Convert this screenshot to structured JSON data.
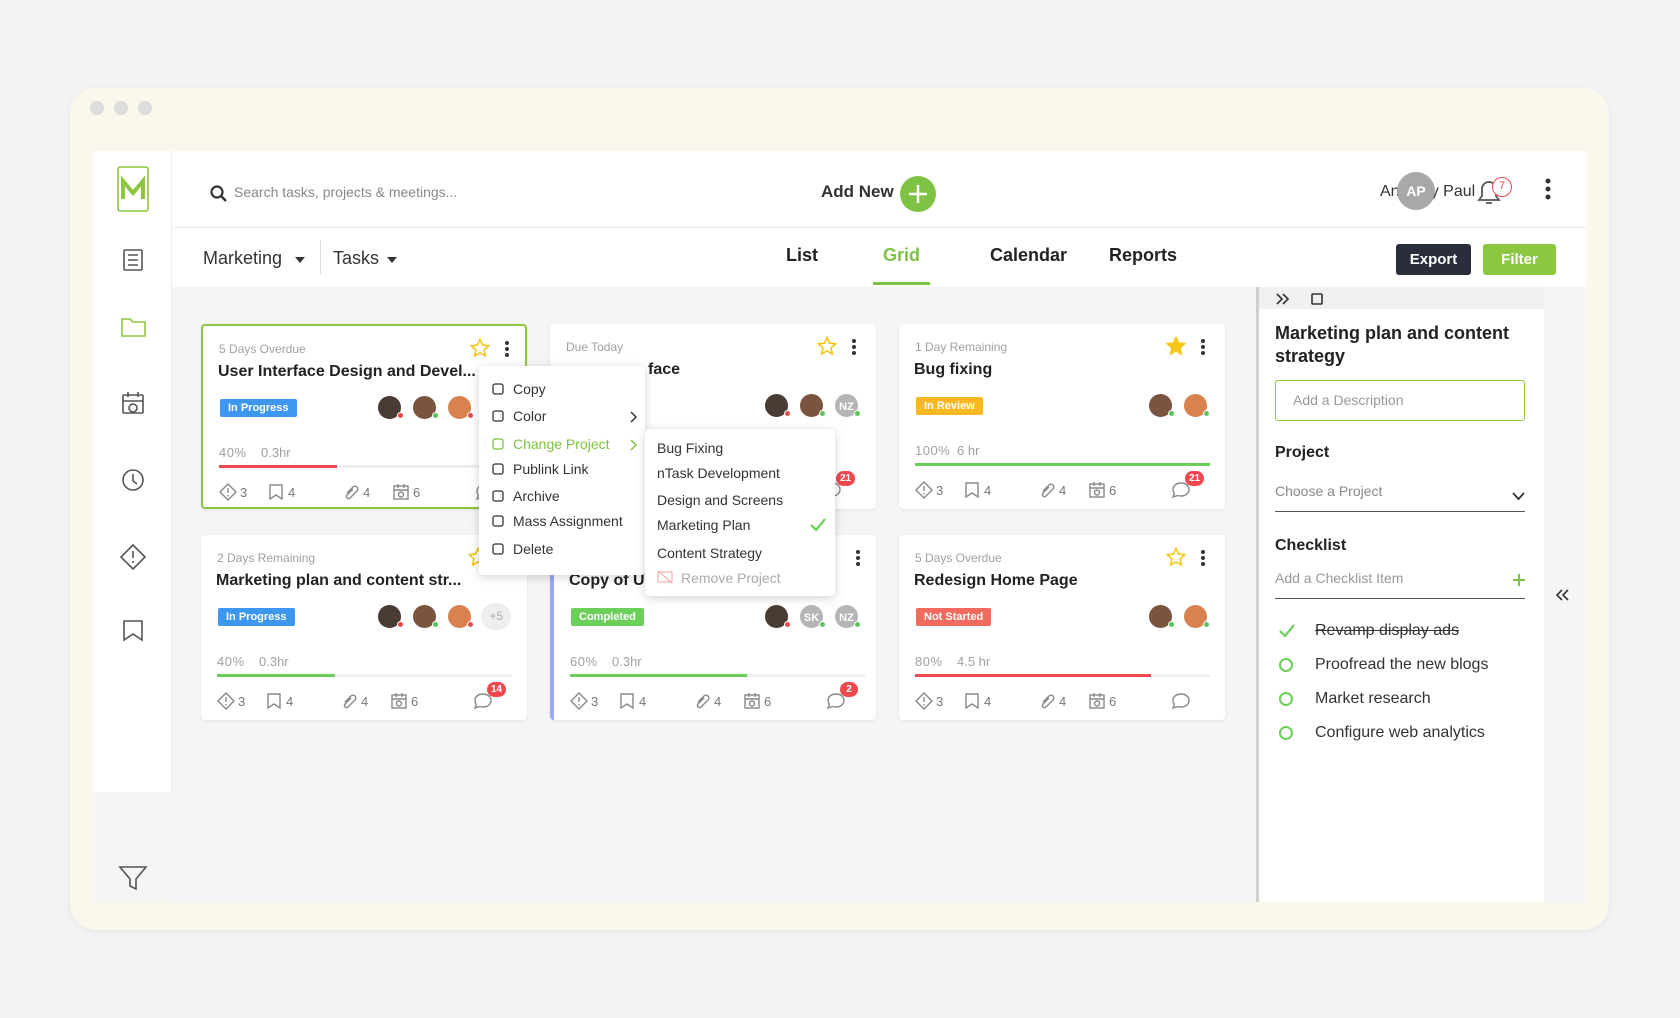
{
  "search": {
    "placeholder": "Search tasks, projects & meetings..."
  },
  "add_new": "Add New",
  "user": {
    "name": "Anthony Paul",
    "initials": "AP"
  },
  "notifications": {
    "count": 7
  },
  "toolbar": {
    "workspace": "Marketing",
    "view": "Tasks",
    "tabs": [
      {
        "label": "List"
      },
      {
        "label": "Grid",
        "active": true
      },
      {
        "label": "Calendar"
      },
      {
        "label": "Reports"
      }
    ],
    "export": "Export",
    "filter": "Filter"
  },
  "cards": [
    {
      "status_text": "5 Days Overdue",
      "title": "User Interface Design and Devel...",
      "starred": false,
      "badge": {
        "label": "In Progress",
        "color": "#3d97f0"
      },
      "avatars": [
        {
          "color": "#4a3a34",
          "presence": "#e94b4b"
        },
        {
          "color": "#7a5440",
          "presence": "#5cc55c"
        },
        {
          "color": "#d9824f",
          "presence": "#e94b4b"
        }
      ],
      "progress": 40,
      "progress_label": "40%",
      "progress_color": "#f0484f",
      "hours": "0.3hr",
      "counts": [
        3,
        4,
        4,
        6
      ]
    },
    {
      "status_text": "Due Today",
      "title": "face",
      "starred": false,
      "avatars": [
        {
          "color": "#4a3a34",
          "presence": "#e94b4b"
        },
        {
          "color": "#7a5440",
          "presence": "#5cc55c"
        },
        {
          "initials": "NZ",
          "presence": "#5cc55c"
        }
      ],
      "comments": 21
    },
    {
      "status_text": "1 Day Remaining",
      "title": "Bug fixing",
      "starred": true,
      "badge": {
        "label": "In Review",
        "color": "#fbb823"
      },
      "avatars": [
        {
          "color": "#7a5440",
          "presence": "#5cc55c"
        },
        {
          "color": "#d9824f",
          "presence": "#5cc55c"
        }
      ],
      "progress": 100,
      "progress_label": "100%",
      "progress_color": "#6bcf5a",
      "hours": "6 hr",
      "counts": [
        3,
        4,
        4,
        6
      ],
      "comments": 21
    },
    {
      "status_text": "2 Days Remaining",
      "title": "Marketing plan and content str...",
      "starred": false,
      "badge": {
        "label": "In Progress",
        "color": "#3d97f0"
      },
      "avatars": [
        {
          "color": "#4a3a34",
          "presence": "#e94b4b"
        },
        {
          "color": "#7a5440",
          "presence": "#5cc55c"
        },
        {
          "color": "#d9824f",
          "presence": "#e94b4b"
        }
      ],
      "more": "+5",
      "progress": 40,
      "progress_label": "40%",
      "progress_color": "#6bcf5a",
      "hours": "0.3hr",
      "counts": [
        3,
        4,
        4,
        6
      ],
      "comments": 14
    },
    {
      "title": "Copy of Us",
      "badge": {
        "label": "Completed",
        "color": "#6bcf5a"
      },
      "avatars": [
        {
          "color": "#4a3a34",
          "presence": "#e94b4b"
        },
        {
          "initials": "SK",
          "presence": "#5cc55c"
        },
        {
          "initials": "NZ",
          "presence": "#5cc55c"
        }
      ],
      "progress": 60,
      "progress_label": "60%",
      "progress_color": "#6bcf5a",
      "hours": "0.3hr",
      "counts": [
        3,
        4,
        4,
        6
      ],
      "comments": 2
    },
    {
      "status_text": "5 Days Overdue",
      "title": "Redesign Home Page",
      "starred": false,
      "badge": {
        "label": "Not Started",
        "color": "#f36b5e"
      },
      "avatars": [
        {
          "color": "#7a5440",
          "presence": "#5cc55c"
        },
        {
          "color": "#d9824f",
          "presence": "#5cc55c"
        }
      ],
      "progress": 80,
      "progress_label": "80%",
      "progress_color": "#f0484f",
      "hours": "4.5 hr",
      "counts": [
        3,
        4,
        4,
        6
      ]
    }
  ],
  "context_menu": {
    "items": [
      {
        "label": "Copy"
      },
      {
        "label": "Color",
        "submenu": true
      },
      {
        "label": "Change Project",
        "submenu": true,
        "active": true
      },
      {
        "label": "Publink Link"
      },
      {
        "label": "Archive"
      },
      {
        "label": "Mass Assignment"
      },
      {
        "label": "Delete"
      }
    ]
  },
  "project_submenu": {
    "items": [
      {
        "label": "Bug Fixing"
      },
      {
        "label": "nTask Development"
      },
      {
        "label": "Design and Screens"
      },
      {
        "label": "Marketing Plan",
        "selected": true
      },
      {
        "label": "Content Strategy"
      },
      {
        "label": "Remove Project",
        "disabled": true
      }
    ]
  },
  "detail_panel": {
    "title": "Marketing plan and content strategy",
    "description_placeholder": "Add a Description",
    "project_label": "Project",
    "project_placeholder": "Choose a Project",
    "checklist_label": "Checklist",
    "checklist_placeholder": "Add a Checklist Item",
    "checklist": [
      {
        "text": "Revamp display ads",
        "done": true
      },
      {
        "text": "Proofread the new blogs",
        "done": false
      },
      {
        "text": "Market research",
        "done": false
      },
      {
        "text": "Configure web analytics",
        "done": false
      }
    ]
  }
}
